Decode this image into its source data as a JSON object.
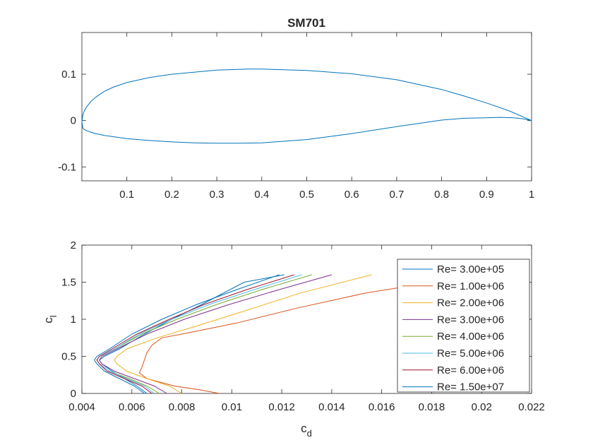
{
  "chart_data": [
    {
      "type": "line",
      "title": "SM701",
      "xlabel": "",
      "ylabel": "",
      "xlim": [
        0,
        1
      ],
      "ylim": [
        -0.13,
        0.19
      ],
      "xticks": [
        0.1,
        0.2,
        0.3,
        0.4,
        0.5,
        0.6,
        0.7,
        0.8,
        0.9,
        1
      ],
      "xtick_labels": [
        "0.1",
        "0.2",
        "0.3",
        "0.4",
        "0.5",
        "0.6",
        "0.7",
        "0.8",
        "0.9",
        "1"
      ],
      "yticks": [
        -0.1,
        0,
        0.1
      ],
      "ytick_labels": [
        "-0.1",
        "0",
        "0.1"
      ],
      "grid": false,
      "series": [
        {
          "color": "#0072BD",
          "x": [
            1,
            0.95,
            0.9,
            0.85,
            0.8,
            0.7,
            0.6,
            0.5,
            0.4,
            0.37,
            0.3,
            0.2,
            0.15,
            0.1,
            0.07,
            0.05,
            0.03,
            0.02,
            0.01,
            0.005,
            0.002,
            0,
            0.002,
            0.005,
            0.01,
            0.03,
            0.05,
            0.1,
            0.15,
            0.2,
            0.25,
            0.3,
            0.35,
            0.4,
            0.5,
            0.6,
            0.7,
            0.8,
            0.85,
            0.9,
            0.93,
            0.96,
            0.98,
            1
          ],
          "y": [
            0,
            0.021,
            0.038,
            0.053,
            0.067,
            0.088,
            0.101,
            0.108,
            0.111,
            0.111,
            0.109,
            0.1,
            0.093,
            0.082,
            0.072,
            0.063,
            0.05,
            0.041,
            0.029,
            0.02,
            0.012,
            -0.003,
            -0.016,
            -0.019,
            -0.022,
            -0.028,
            -0.032,
            -0.039,
            -0.043,
            -0.046,
            -0.048,
            -0.049,
            -0.049,
            -0.048,
            -0.041,
            -0.028,
            -0.013,
            0.001,
            0.005,
            0.006,
            0.007,
            0.006,
            0.004,
            0
          ]
        }
      ]
    },
    {
      "type": "line",
      "title": "",
      "xlabel": "c_d",
      "ylabel": "c_l",
      "xlim": [
        0.004,
        0.022
      ],
      "ylim": [
        0,
        2
      ],
      "xticks": [
        0.004,
        0.006,
        0.008,
        0.01,
        0.012,
        0.014,
        0.016,
        0.018,
        0.02,
        0.022
      ],
      "xtick_labels": [
        "0.004",
        "0.006",
        "0.008",
        "0.01",
        "0.012",
        "0.014",
        "0.016",
        "0.018",
        "0.02",
        "0.022"
      ],
      "yticks": [
        0,
        0.5,
        1,
        1.5,
        2
      ],
      "ytick_labels": [
        "0",
        "0.5",
        "1",
        "1.5",
        "2"
      ],
      "grid": false,
      "legend": "top-right",
      "series": [
        {
          "name": "Re= 3.00e+05",
          "color": "#0072BD",
          "x": [
            0.0066,
            0.0062,
            0.0057,
            0.0052,
            0.0048,
            0.0047,
            0.0049,
            0.0055,
            0.0065,
            0.0076,
            0.0088,
            0.0105,
            0.0121
          ],
          "y": [
            0,
            0.1,
            0.2,
            0.3,
            0.4,
            0.45,
            0.5,
            0.6,
            0.8,
            1.0,
            1.2,
            1.5,
            1.6
          ]
        },
        {
          "name": "Re= 1.00e+06",
          "color": "#D95319",
          "x": [
            0.0095,
            0.0087,
            0.0077,
            0.0066,
            0.0063,
            0.0064,
            0.0065,
            0.0066,
            0.0068,
            0.0072,
            0.008,
            0.0102,
            0.0126,
            0.0153,
            0.0175,
            0.0219
          ],
          "y": [
            0,
            0.05,
            0.1,
            0.2,
            0.28,
            0.35,
            0.45,
            0.55,
            0.65,
            0.75,
            0.8,
            0.95,
            1.15,
            1.35,
            1.47,
            1.6
          ]
        },
        {
          "name": "Re= 2.00e+06",
          "color": "#EDB120",
          "x": [
            0.008,
            0.0075,
            0.0066,
            0.0058,
            0.0054,
            0.0053,
            0.0054,
            0.0058,
            0.007,
            0.0085,
            0.0104,
            0.0127,
            0.0156
          ],
          "y": [
            0,
            0.1,
            0.2,
            0.3,
            0.4,
            0.45,
            0.5,
            0.6,
            0.75,
            0.9,
            1.1,
            1.35,
            1.6
          ]
        },
        {
          "name": "Re= 3.00e+06",
          "color": "#7E2F8E",
          "x": [
            0.0074,
            0.0069,
            0.0061,
            0.0053,
            0.0048,
            0.0047,
            0.0048,
            0.0054,
            0.0066,
            0.0081,
            0.0099,
            0.0119,
            0.014
          ],
          "y": [
            0,
            0.1,
            0.2,
            0.3,
            0.4,
            0.45,
            0.5,
            0.6,
            0.8,
            1.0,
            1.2,
            1.4,
            1.6
          ]
        },
        {
          "name": "Re= 4.00e+06",
          "color": "#77AC30",
          "x": [
            0.0071,
            0.0066,
            0.0059,
            0.0051,
            0.0047,
            0.0046,
            0.0047,
            0.0053,
            0.0064,
            0.0078,
            0.0094,
            0.0112,
            0.0132
          ],
          "y": [
            0,
            0.1,
            0.2,
            0.3,
            0.4,
            0.45,
            0.5,
            0.6,
            0.8,
            1.0,
            1.2,
            1.4,
            1.6
          ]
        },
        {
          "name": "Re= 5.00e+06",
          "color": "#4DBEEE",
          "x": [
            0.0069,
            0.0065,
            0.0058,
            0.0051,
            0.0047,
            0.0046,
            0.0047,
            0.0053,
            0.0063,
            0.0076,
            0.0091,
            0.0109,
            0.0128
          ],
          "y": [
            0,
            0.1,
            0.2,
            0.3,
            0.4,
            0.45,
            0.5,
            0.6,
            0.8,
            1.0,
            1.2,
            1.4,
            1.6
          ]
        },
        {
          "name": "Re= 6.00e+06",
          "color": "#A2142F",
          "x": [
            0.0068,
            0.0064,
            0.0057,
            0.005,
            0.0047,
            0.0046,
            0.0047,
            0.0052,
            0.0062,
            0.0075,
            0.0089,
            0.0106,
            0.0125
          ],
          "y": [
            0,
            0.1,
            0.2,
            0.3,
            0.4,
            0.45,
            0.5,
            0.6,
            0.8,
            1.0,
            1.2,
            1.4,
            1.6
          ]
        },
        {
          "name": "Re= 1.50e+07",
          "color": "#0072BD",
          "x": [
            0.0065,
            0.0061,
            0.0055,
            0.0049,
            0.0046,
            0.0045,
            0.0046,
            0.0051,
            0.006,
            0.0072,
            0.0086,
            0.0102,
            0.0119
          ],
          "y": [
            0,
            0.1,
            0.2,
            0.3,
            0.4,
            0.45,
            0.5,
            0.6,
            0.8,
            1.0,
            1.2,
            1.4,
            1.6
          ]
        }
      ]
    }
  ]
}
